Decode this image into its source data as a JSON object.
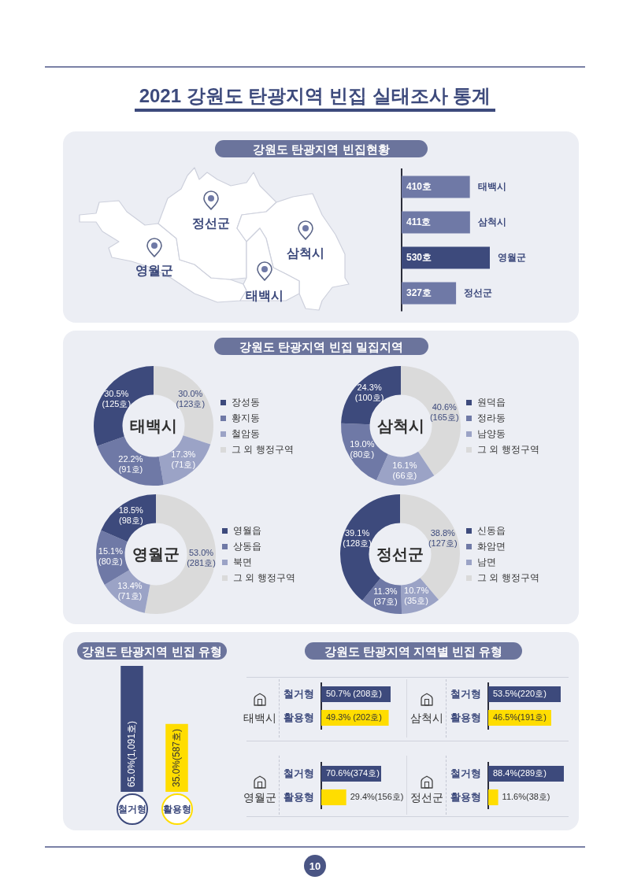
{
  "chart_data": [
    {
      "type": "other",
      "title": "2021 강원도 탄광지역 빈집 실태조사 통계",
      "annotations": [
        "10"
      ]
    },
    {
      "type": "bar",
      "orientation": "horizontal",
      "title": "강원도 탄광지역 빈집현황",
      "categories": [
        "태백시",
        "삼척시",
        "영월군",
        "정선군"
      ],
      "values": [
        410,
        411,
        530,
        327
      ],
      "colors": [
        "#6f79a6",
        "#6f79a6",
        "#3d4a7c",
        "#6f79a6"
      ],
      "value_labels": [
        "410호",
        "411호",
        "530호",
        "327호"
      ],
      "tick_labels": "y",
      "annotations": [
        "정선군",
        "삼척시",
        "영월군",
        "태백시"
      ]
    },
    {
      "type": "other",
      "title": "강원도 탄광지역 빈집 밀집지역"
    },
    {
      "type": "donut",
      "title": "태백시",
      "categories": [
        "장성동",
        "황지동",
        "철암동",
        "그 외 행정구역"
      ],
      "values": [
        30.5,
        22.2,
        17.3,
        30.0
      ],
      "colors": [
        "#3d4a7c",
        "#6f79a6",
        "#9ba3c6",
        "#dadada"
      ],
      "value_labels": [
        "30.5%\n(125호)",
        "22.2%\n(91호)",
        "17.3%\n(71호)",
        "30.0%\n(123호)"
      ],
      "legend": "right"
    },
    {
      "type": "donut",
      "title": "삼척시",
      "categories": [
        "원덕읍",
        "정라동",
        "남양동",
        "그 외 행정구역"
      ],
      "values": [
        24.3,
        19.0,
        16.1,
        40.6
      ],
      "colors": [
        "#3d4a7c",
        "#6f79a6",
        "#9ba3c6",
        "#dadada"
      ],
      "value_labels": [
        "24.3%\n(100호)",
        "19.0%\n(80호)",
        "16.1%\n(66호)",
        "40.6%\n(165호)"
      ],
      "legend": "right"
    },
    {
      "type": "donut",
      "title": "영월군",
      "categories": [
        "영월읍",
        "상동읍",
        "북면",
        "그 외 행정구역"
      ],
      "values": [
        18.5,
        15.1,
        13.4,
        53.0
      ],
      "colors": [
        "#3d4a7c",
        "#6f79a6",
        "#9ba3c6",
        "#dadada"
      ],
      "value_labels": [
        "18.5%\n(98호)",
        "15.1%\n(80호)",
        "13.4%\n(71호)",
        "53.0%\n(281호)"
      ],
      "legend": "right"
    },
    {
      "type": "donut",
      "title": "정선군",
      "categories": [
        "신동읍",
        "화암면",
        "남면",
        "그 외 행정구역"
      ],
      "values": [
        39.1,
        11.3,
        10.7,
        38.8
      ],
      "colors": [
        "#3d4a7c",
        "#6f79a6",
        "#9ba3c6",
        "#dadada"
      ],
      "value_labels": [
        "39.1%\n(128호)",
        "11.3%\n(37호)",
        "10.7%\n(35호)",
        "38.8%\n(127호)"
      ],
      "legend": "right"
    },
    {
      "type": "bar",
      "title": "강원도 탄광지역 빈집 유형",
      "categories": [
        "철거형",
        "활용형"
      ],
      "values": [
        65.0,
        35.0
      ],
      "colors": [
        "#3d4a7c",
        "#ffdd00"
      ],
      "value_labels": [
        "65.0%(1,091호)",
        "35.0%(587호)"
      ],
      "tick_labels": "x"
    },
    {
      "type": "other",
      "title": "강원도 탄광지역 지역별 빈집 유형"
    },
    {
      "type": "bar",
      "orientation": "horizontal",
      "title": "태백시",
      "categories": [
        "철거형",
        "활용형"
      ],
      "values": [
        50.7,
        49.3
      ],
      "colors": [
        "#3d4a7c",
        "#ffdd00"
      ],
      "value_labels": [
        "50.7% (208호)",
        "49.3% (202호)"
      ],
      "tick_labels": "y"
    },
    {
      "type": "bar",
      "orientation": "horizontal",
      "title": "삼척시",
      "categories": [
        "철거형",
        "활용형"
      ],
      "values": [
        53.5,
        46.5
      ],
      "colors": [
        "#3d4a7c",
        "#ffdd00"
      ],
      "value_labels": [
        "53.5%(220호)",
        "46.5%(191호)"
      ],
      "tick_labels": "y"
    },
    {
      "type": "bar",
      "orientation": "horizontal",
      "title": "영월군",
      "categories": [
        "철거형",
        "활용형"
      ],
      "values": [
        70.6,
        29.4
      ],
      "colors": [
        "#3d4a7c",
        "#ffdd00"
      ],
      "value_labels": [
        "70.6%(374호)",
        "29.4%(156호)"
      ],
      "tick_labels": "y"
    },
    {
      "type": "bar",
      "orientation": "horizontal",
      "title": "정선군",
      "categories": [
        "철거형",
        "활용형"
      ],
      "values": [
        88.4,
        11.6
      ],
      "colors": [
        "#3d4a7c",
        "#ffdd00"
      ],
      "value_labels": [
        "88.4%(289호)",
        "11.6%(38호)"
      ],
      "tick_labels": "y"
    }
  ]
}
